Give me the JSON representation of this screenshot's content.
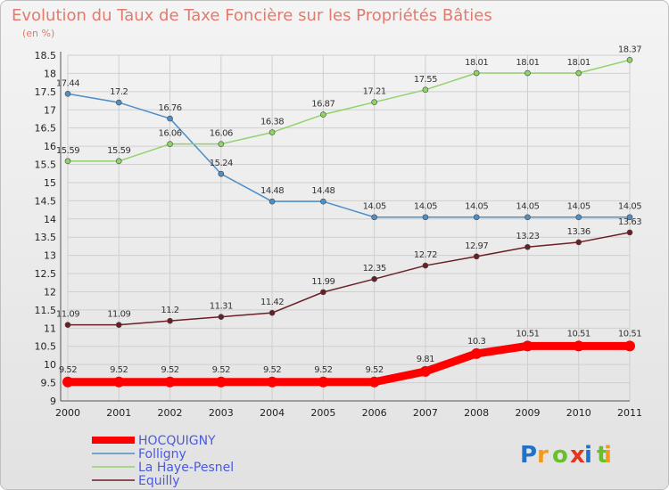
{
  "chart_data": {
    "type": "line",
    "title": "Evolution du Taux de Taxe Foncière sur les Propriétés Bâties",
    "unit_label": "(en %)",
    "x": [
      "2000",
      "2001",
      "2002",
      "2003",
      "2004",
      "2005",
      "2006",
      "2007",
      "2008",
      "2009",
      "2010",
      "2011"
    ],
    "ylim": [
      9,
      18.5
    ],
    "yticks": [
      "9",
      "9.5",
      "10",
      "10.5",
      "11",
      "11.5",
      "12",
      "12.5",
      "13",
      "13.5",
      "14",
      "14.5",
      "15",
      "15.5",
      "16",
      "16.5",
      "17",
      "17.5",
      "18",
      "18.5"
    ],
    "grid": true,
    "legend": "bottom-left",
    "series": [
      {
        "name": "HOCQUIGNY",
        "color": "#ff0000",
        "values": [
          9.52,
          9.52,
          9.52,
          9.52,
          9.52,
          9.52,
          9.52,
          9.81,
          10.3,
          10.51,
          10.51,
          10.51
        ],
        "labels": [
          "9.52",
          "9.52",
          "9.52",
          "9.52",
          "9.52",
          "9.52",
          "9.52",
          "9.81",
          "10.3",
          "10.51",
          "10.51",
          "10.51"
        ]
      },
      {
        "name": "Folligny",
        "color": "#4f8fc6",
        "values": [
          17.44,
          17.2,
          16.76,
          15.24,
          14.48,
          14.48,
          14.05,
          14.05,
          14.05,
          14.05,
          14.05,
          14.05
        ],
        "labels": [
          "17.44",
          "17.2",
          "16.76",
          "15.24",
          "14.48",
          "14.48",
          "14.05",
          "14.05",
          "14.05",
          "14.05",
          "14.05",
          "14.05"
        ]
      },
      {
        "name": "La Haye-Pesnel",
        "color": "#8fd36a",
        "values": [
          15.59,
          15.59,
          16.06,
          16.06,
          16.38,
          16.87,
          17.21,
          17.55,
          18.01,
          18.01,
          18.01,
          18.37
        ],
        "labels": [
          "15.59",
          "15.59",
          "16.06",
          "16.06",
          "16.38",
          "16.87",
          "17.21",
          "17.55",
          "18.01",
          "18.01",
          "18.01",
          "18.37"
        ]
      },
      {
        "name": "Equilly",
        "color": "#6b1f25",
        "values": [
          11.09,
          11.09,
          11.2,
          11.31,
          11.42,
          11.99,
          12.35,
          12.72,
          12.97,
          13.23,
          13.36,
          13.63
        ],
        "labels": [
          "11.09",
          "11.09",
          "11.2",
          "11.31",
          "11.42",
          "11.99",
          "12.35",
          "12.72",
          "12.97",
          "13.23",
          "13.36",
          "13.63"
        ]
      }
    ]
  },
  "logo": {
    "text": "Proxiti"
  }
}
